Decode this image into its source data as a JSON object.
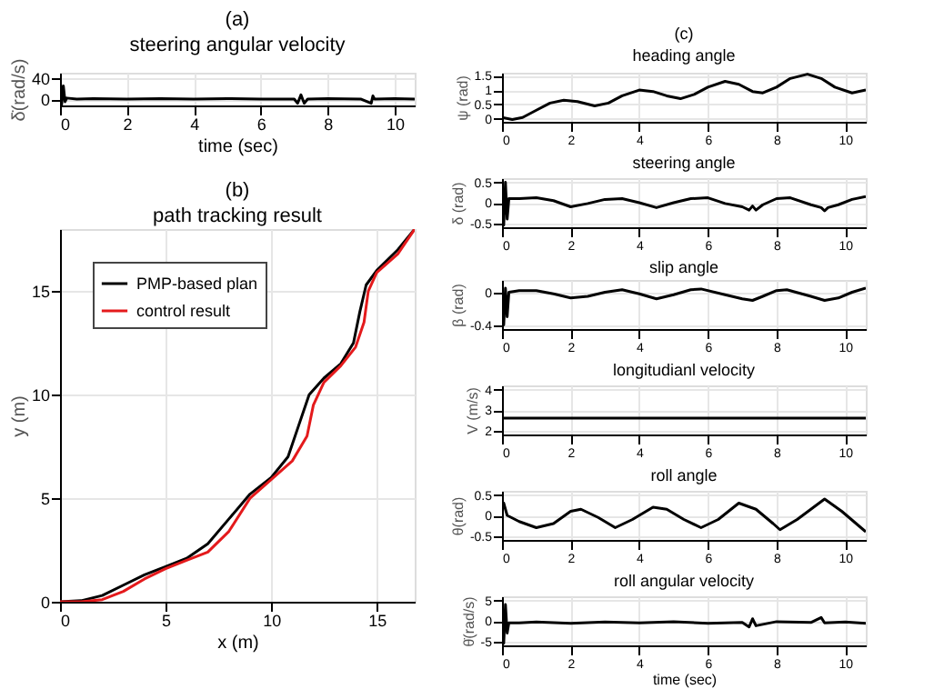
{
  "chart_data": [
    {
      "type": "line",
      "title": "(a)",
      "subtitle": "steering angular velocity",
      "xlabel": "time (sec)",
      "ylabel": "δ̇(rad/s)",
      "xlim": [
        0,
        10.6
      ],
      "ylim": [
        -12,
        50
      ],
      "xticks": [
        0,
        2,
        4,
        6,
        8,
        10
      ],
      "yticks": [
        0,
        40
      ],
      "grid": true,
      "series": [
        {
          "color": "#000000",
          "x": [
            0,
            0.05,
            0.1,
            0.15,
            0.2,
            0.5,
            1,
            2,
            3,
            4,
            5,
            6,
            7,
            7.1,
            7.2,
            7.3,
            7.4,
            8,
            9,
            9.3,
            9.35,
            9.4,
            10,
            10.6
          ],
          "values": [
            45,
            -10,
            25,
            -5,
            2,
            0,
            1,
            0,
            1,
            0,
            1,
            0,
            0,
            -8,
            8,
            -8,
            0,
            1,
            0,
            -8,
            6,
            0,
            1,
            0
          ]
        }
      ]
    },
    {
      "type": "line",
      "title": "(b)",
      "subtitle": "path tracking result",
      "xlabel": "x (m)",
      "ylabel": "y (m)",
      "xlim": [
        0,
        16.8
      ],
      "ylim": [
        0,
        18
      ],
      "xticks": [
        0,
        5,
        10,
        15
      ],
      "yticks": [
        0,
        5,
        10,
        15
      ],
      "grid": true,
      "legend": "top left",
      "series": [
        {
          "name": "PMP-based plan",
          "color": "#000000",
          "x": [
            0,
            1,
            2,
            3,
            4,
            5,
            6,
            7,
            8,
            9,
            10,
            10.8,
            11.3,
            11.8,
            12.5,
            13.3,
            13.9,
            14.2,
            14.5,
            15,
            16,
            16.8
          ],
          "values": [
            0,
            0.05,
            0.3,
            0.8,
            1.3,
            1.7,
            2.1,
            2.8,
            4,
            5.2,
            6,
            7,
            8.5,
            10,
            10.8,
            11.5,
            12.5,
            14,
            15.3,
            16,
            17,
            18
          ]
        },
        {
          "name": "control result",
          "color": "#e41a1c",
          "x": [
            0,
            1,
            2,
            3,
            4,
            5,
            6,
            7,
            8,
            9,
            10,
            11,
            11.7,
            12,
            12.5,
            13.3,
            14,
            14.4,
            14.6,
            15,
            16,
            16.8
          ],
          "values": [
            0,
            0,
            0.1,
            0.5,
            1.1,
            1.6,
            2,
            2.4,
            3.4,
            5,
            5.9,
            6.8,
            8,
            9.5,
            10.6,
            11.4,
            12.3,
            13.5,
            15,
            15.9,
            16.8,
            18
          ]
        }
      ]
    },
    {
      "type": "line",
      "title": "(c)",
      "subtitle": "heading angle",
      "ylabel": "ψ (rad)",
      "xlim": [
        0,
        10.6
      ],
      "ylim": [
        -0.1,
        1.6
      ],
      "xticks": [
        0,
        2,
        4,
        6,
        8,
        10
      ],
      "yticks": [
        0,
        0.5,
        1,
        1.5
      ],
      "grid": true,
      "series": [
        {
          "color": "#000000",
          "x": [
            0,
            0.3,
            0.6,
            1,
            1.4,
            1.8,
            2.2,
            2.7,
            3.1,
            3.5,
            4,
            4.4,
            4.8,
            5.2,
            5.6,
            6,
            6.5,
            6.9,
            7.3,
            7.6,
            8,
            8.4,
            8.9,
            9.3,
            9.7,
            10.2,
            10.6
          ],
          "values": [
            0.05,
            -0.02,
            0.05,
            0.3,
            0.55,
            0.65,
            0.6,
            0.45,
            0.55,
            0.8,
            1,
            0.95,
            0.8,
            0.7,
            0.85,
            1.1,
            1.3,
            1.2,
            0.95,
            0.9,
            1.1,
            1.4,
            1.55,
            1.4,
            1.1,
            0.9,
            1
          ]
        }
      ]
    },
    {
      "type": "line",
      "title": "steering angle",
      "ylabel": "δ (rad)",
      "xlim": [
        0,
        10.6
      ],
      "ylim": [
        -0.6,
        0.6
      ],
      "xticks": [
        0,
        2,
        4,
        6,
        8,
        10
      ],
      "yticks": [
        -0.5,
        0,
        0.5
      ],
      "grid": true,
      "series": [
        {
          "color": "#000000",
          "x": [
            0,
            0.05,
            0.1,
            0.15,
            0.2,
            0.5,
            1,
            1.5,
            2,
            2.5,
            3,
            3.5,
            4,
            4.5,
            5,
            5.5,
            6,
            6.5,
            7,
            7.2,
            7.3,
            7.4,
            7.6,
            8,
            8.4,
            9,
            9.3,
            9.4,
            9.5,
            9.8,
            10.2,
            10.6
          ],
          "values": [
            0.55,
            -0.55,
            0.5,
            -0.4,
            0.1,
            0.1,
            0.12,
            0.05,
            -0.1,
            -0.02,
            0.08,
            0.1,
            0,
            -0.12,
            0,
            0.1,
            0.12,
            -0.02,
            -0.1,
            -0.18,
            -0.08,
            -0.18,
            -0.05,
            0.1,
            0.12,
            -0.05,
            -0.12,
            -0.2,
            -0.12,
            -0.05,
            0.08,
            0.15
          ]
        }
      ]
    },
    {
      "type": "line",
      "title": "slip angle",
      "ylabel": "β (rad)",
      "xlim": [
        0,
        10.6
      ],
      "ylim": [
        -0.45,
        0.15
      ],
      "xticks": [
        0,
        2,
        4,
        6,
        8,
        10
      ],
      "yticks": [
        -0.4,
        0
      ],
      "grid": true,
      "series": [
        {
          "color": "#000000",
          "x": [
            0,
            0.05,
            0.1,
            0.15,
            0.2,
            0.5,
            1,
            1.5,
            2,
            2.5,
            3,
            3.5,
            4,
            4.5,
            5,
            5.5,
            5.8,
            6.5,
            7,
            7.3,
            7.6,
            8,
            8.3,
            9,
            9.4,
            9.8,
            10.2,
            10.6
          ],
          "values": [
            0.1,
            -0.4,
            0.05,
            -0.3,
            0,
            0.02,
            0.02,
            -0.02,
            -0.07,
            -0.05,
            0,
            0.03,
            -0.02,
            -0.08,
            -0.03,
            0.03,
            0.04,
            -0.03,
            -0.08,
            -0.1,
            -0.05,
            0.02,
            0.03,
            -0.05,
            -0.1,
            -0.07,
            0,
            0.05
          ]
        }
      ]
    },
    {
      "type": "line",
      "title": "longitudianl velocity",
      "ylabel": "V (m/s)",
      "xlim": [
        0,
        10.6
      ],
      "ylim": [
        1.8,
        4.2
      ],
      "xticks": [
        0,
        2,
        4,
        6,
        8,
        10
      ],
      "yticks": [
        2,
        3,
        4
      ],
      "grid": true,
      "series": [
        {
          "color": "#000000",
          "x": [
            0,
            10.6
          ],
          "values": [
            2.6,
            2.6
          ]
        }
      ]
    },
    {
      "type": "line",
      "title": "roll angle",
      "ylabel": "θ(rad)",
      "xlim": [
        0,
        10.6
      ],
      "ylim": [
        -0.6,
        0.6
      ],
      "xticks": [
        0,
        2,
        4,
        6,
        8,
        10
      ],
      "yticks": [
        -0.5,
        0,
        0.5
      ],
      "grid": true,
      "series": [
        {
          "color": "#000000",
          "x": [
            0,
            0.05,
            0.15,
            0.5,
            1,
            1.5,
            2,
            2.3,
            2.8,
            3.3,
            3.8,
            4.4,
            4.8,
            5.3,
            5.8,
            6.3,
            6.9,
            7.4,
            7.9,
            8.1,
            8.6,
            9.4,
            9.9,
            10.6
          ],
          "values": [
            0.1,
            0.3,
            0,
            -0.15,
            -0.3,
            -0.2,
            0.1,
            0.15,
            -0.05,
            -0.3,
            -0.1,
            0.2,
            0.15,
            -0.1,
            -0.3,
            -0.1,
            0.3,
            0.15,
            -0.2,
            -0.35,
            -0.1,
            0.4,
            0.1,
            -0.4
          ]
        }
      ]
    },
    {
      "type": "line",
      "title": "roll angular velocity",
      "xlabel": "time (sec)",
      "ylabel": "θ̇(rad/s)",
      "xlim": [
        0,
        10.6
      ],
      "ylim": [
        -6,
        6
      ],
      "xticks": [
        0,
        2,
        4,
        6,
        8,
        10
      ],
      "yticks": [
        -5,
        0,
        5
      ],
      "grid": true,
      "series": [
        {
          "color": "#000000",
          "x": [
            0,
            0.05,
            0.1,
            0.15,
            0.2,
            0.5,
            1,
            2,
            3,
            4,
            5,
            6,
            7,
            7.2,
            7.3,
            7.4,
            8,
            9,
            9.3,
            9.4,
            10,
            10.6
          ],
          "values": [
            5.5,
            -5.5,
            4,
            -3,
            -0.5,
            -0.5,
            -0.3,
            -0.6,
            -0.3,
            -0.5,
            -0.2,
            -0.6,
            -0.4,
            -1.5,
            0.5,
            -1.2,
            -0.2,
            -0.4,
            0.8,
            -0.5,
            -0.3,
            -0.6
          ]
        }
      ]
    }
  ]
}
